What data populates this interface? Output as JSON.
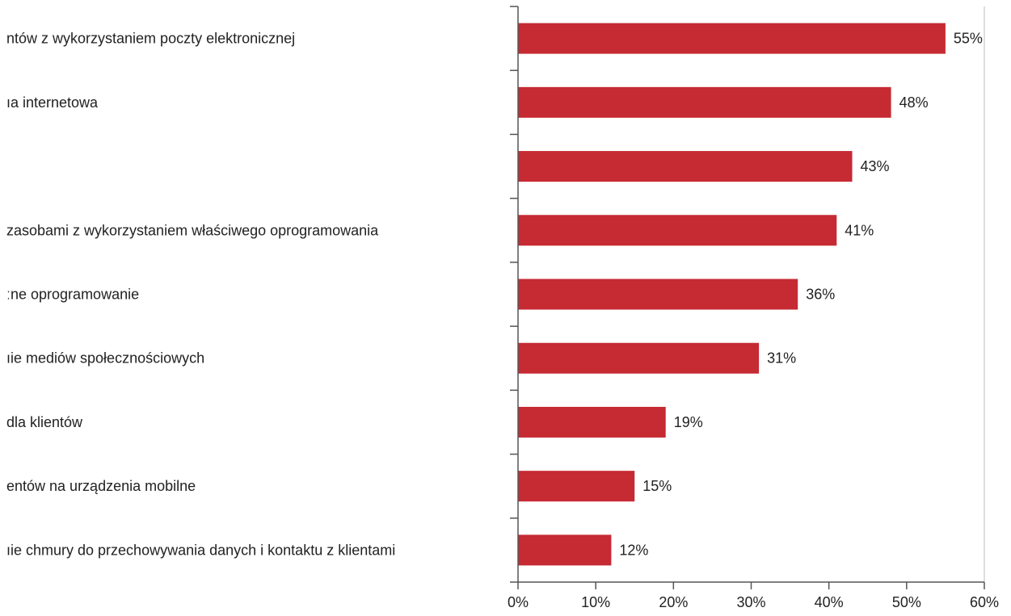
{
  "chart_data": {
    "type": "bar",
    "orientation": "horizontal",
    "categories": [
      "ntów z wykorzystaniem poczty elektronicznej",
      "ıa internetowa",
      "",
      " zasobami z wykorzystaniem właściwego oprogramowania",
      "ːne oprogramowanie",
      "ıie mediów społecznościowych",
      " dla klientów",
      "entów na urządzenia mobilne",
      "ıie chmury do przechowywania danych i kontaktu z klientami"
    ],
    "values": [
      55,
      48,
      43,
      41,
      36,
      31,
      19,
      15,
      12
    ],
    "value_labels": [
      "55%",
      "48%",
      "43%",
      "41%",
      "36%",
      "31%",
      "19%",
      "15%",
      "12%"
    ],
    "xlim": [
      0,
      60
    ],
    "xticks": [
      0,
      10,
      20,
      30,
      40,
      50,
      60
    ],
    "xtick_labels": [
      "0%",
      "10%",
      "20%",
      "30%",
      "40%",
      "50%",
      "60%"
    ],
    "bar_color": "#c62a33",
    "grid": false,
    "legend": "none"
  }
}
